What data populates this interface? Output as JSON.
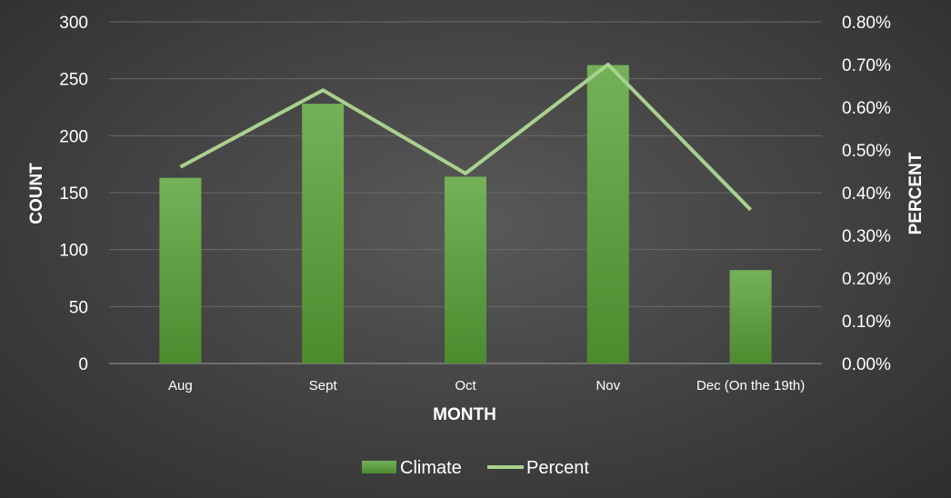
{
  "chart_data": {
    "type": "bar",
    "categories": [
      "Aug",
      "Sept",
      "Oct",
      "Nov",
      "Dec (On the 19th)"
    ],
    "series": [
      {
        "name": "Climate",
        "kind": "bar",
        "axis": "left",
        "values": [
          163,
          228,
          164,
          262,
          82
        ]
      },
      {
        "name": "Percent",
        "kind": "line",
        "axis": "right",
        "values": [
          0.0046,
          0.0064,
          0.00445,
          0.007,
          0.0036
        ]
      }
    ],
    "xlabel": "MONTH",
    "ylabel": "COUNT",
    "ylabel_right": "PERCENT",
    "ylim": [
      0,
      300
    ],
    "ylim_right": [
      0,
      0.008
    ],
    "yticks": [
      "0",
      "50",
      "100",
      "150",
      "200",
      "250",
      "300"
    ],
    "yticks_right": [
      "0.00%",
      "0.10%",
      "0.20%",
      "0.30%",
      "0.40%",
      "0.50%",
      "0.60%",
      "0.70%",
      "0.80%"
    ],
    "grid": true,
    "legend_position": "bottom",
    "colors": {
      "bar": "#6aab4c",
      "bar_dark": "#4f8c2f",
      "line": "#a9d18e",
      "text": "#ffffff",
      "grid": "#6a6a6a"
    }
  }
}
